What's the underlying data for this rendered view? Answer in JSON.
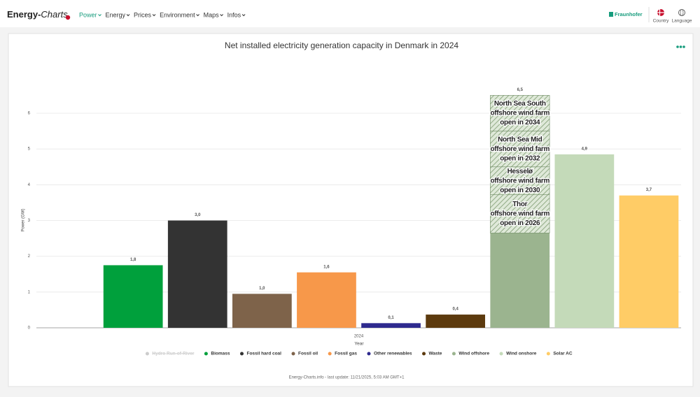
{
  "nav": {
    "logo": [
      "Energy-",
      "Charts"
    ],
    "menu": [
      "Power",
      "Energy",
      "Prices",
      "Environment",
      "Maps",
      "Infos"
    ],
    "brand": "Fraunhofer",
    "country": "Country",
    "language": "Language"
  },
  "chart_data": {
    "type": "bar",
    "title": "Net installed electricity generation capacity in Denmark in 2024",
    "ylabel": "Power (GW)",
    "xlabel": "Year",
    "categories": [
      "2024"
    ],
    "ylim": [
      0,
      6.8
    ],
    "yticks": [
      0,
      1,
      2,
      3,
      4,
      5,
      6
    ],
    "grid": true,
    "series": [
      {
        "name": "Hydro Run-of-River",
        "color": "#cccccc",
        "values": [
          null
        ],
        "hidden": true
      },
      {
        "name": "Biomass",
        "color": "#00a03c",
        "values": [
          1.75
        ],
        "value_labels": [
          "1,8"
        ]
      },
      {
        "name": "Fossil hard coal",
        "color": "#333333",
        "values": [
          3.0
        ],
        "value_labels": [
          "3,0"
        ]
      },
      {
        "name": "Fossil oil",
        "color": "#7e634a",
        "values": [
          0.95
        ],
        "value_labels": [
          "1,0"
        ]
      },
      {
        "name": "Fossil gas",
        "color": "#f7984a",
        "values": [
          1.55
        ],
        "value_labels": [
          "1,6"
        ]
      },
      {
        "name": "Other renewables",
        "color": "#2e2a8e",
        "values": [
          0.13
        ],
        "value_labels": [
          "0,1"
        ]
      },
      {
        "name": "Waste",
        "color": "#5c3a0e",
        "values": [
          0.37
        ],
        "value_labels": [
          "0,4"
        ]
      },
      {
        "name": "Wind offshore",
        "color": "#9bb48f",
        "values": [
          2.65
        ]
      },
      {
        "name": "Wind onshore",
        "color": "#c4dab9",
        "values": [
          4.85
        ],
        "value_labels": [
          "4,9"
        ]
      },
      {
        "name": "Solar AC",
        "color": "#ffcc66",
        "values": [
          3.7
        ],
        "value_labels": [
          "3,7"
        ]
      }
    ],
    "planned": {
      "series": 7,
      "total_label": "6,5",
      "segments": [
        {
          "lines": [
            "Thor",
            "offshore wind farm",
            "open in 2026"
          ],
          "value": 1.07
        },
        {
          "lines": [
            "Hesselø",
            "offshore wind farm",
            "open in 2030"
          ],
          "value": 0.78
        },
        {
          "lines": [
            "North Sea Mid",
            "offshore wind farm",
            "open in 2032"
          ],
          "value": 1.0
        },
        {
          "lines": [
            "North Sea South",
            "offshore wind farm",
            "open in 2034"
          ],
          "value": 1.0
        }
      ]
    },
    "footer": "Energy-Charts.info - last update: 11/21/2025, 5:03 AM GMT+1"
  }
}
